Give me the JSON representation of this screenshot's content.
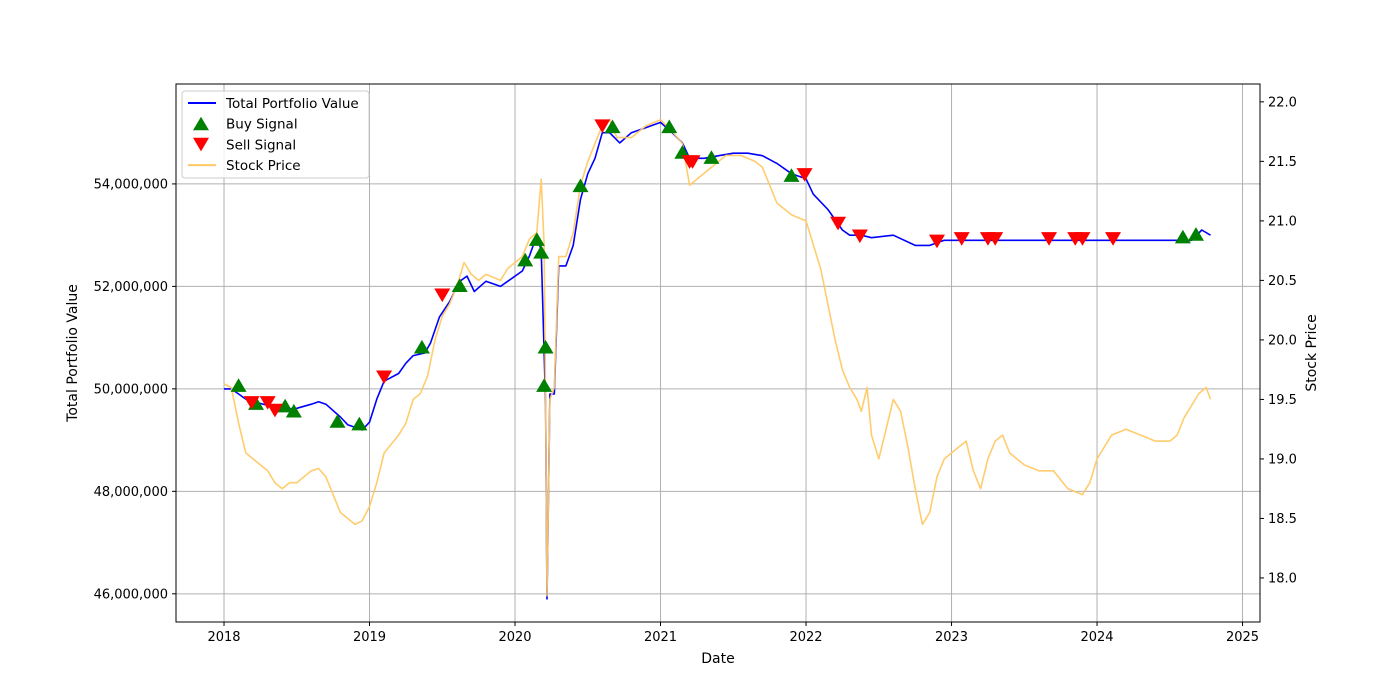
{
  "chart_data": {
    "type": "line",
    "title": "",
    "xlabel": "Date",
    "ylabel_left": "Total Portfolio Value",
    "ylabel_right": "Stock Price",
    "x_ticks": [
      "2018",
      "2019",
      "2020",
      "2021",
      "2022",
      "2023",
      "2024",
      "2025"
    ],
    "xlim": [
      2017.67,
      2025.12
    ],
    "y_left_ticks": [
      "46,000,000",
      "48,000,000",
      "50,000,000",
      "52,000,000",
      "54,000,000"
    ],
    "y_left_lim": [
      45450000,
      55950000
    ],
    "y_right_ticks": [
      "18.0",
      "18.5",
      "19.0",
      "19.5",
      "20.0",
      "20.5",
      "21.0",
      "21.5",
      "22.0"
    ],
    "y_right_lim": [
      17.63,
      22.15
    ],
    "grid": true,
    "legend_position": "top-left",
    "legend": [
      {
        "label": "Total Portfolio Value",
        "kind": "line",
        "color": "#0000ff"
      },
      {
        "label": "Buy Signal",
        "kind": "triangle-up",
        "color": "#008000"
      },
      {
        "label": "Sell Signal",
        "kind": "triangle-down",
        "color": "#ff0000"
      },
      {
        "label": "Stock Price",
        "kind": "line",
        "color": "#ffc966"
      }
    ],
    "series": [
      {
        "name": "Total Portfolio Value",
        "axis": "left",
        "color": "#0000ff",
        "points": [
          [
            2018.0,
            50000000
          ],
          [
            2018.05,
            50000000
          ],
          [
            2018.1,
            49900000
          ],
          [
            2018.15,
            49800000
          ],
          [
            2018.2,
            49750000
          ],
          [
            2018.3,
            49680000
          ],
          [
            2018.4,
            49600000
          ],
          [
            2018.5,
            49620000
          ],
          [
            2018.6,
            49700000
          ],
          [
            2018.65,
            49750000
          ],
          [
            2018.7,
            49700000
          ],
          [
            2018.8,
            49450000
          ],
          [
            2018.85,
            49300000
          ],
          [
            2018.95,
            49200000
          ],
          [
            2019.0,
            49350000
          ],
          [
            2019.05,
            49800000
          ],
          [
            2019.1,
            50150000
          ],
          [
            2019.2,
            50300000
          ],
          [
            2019.25,
            50500000
          ],
          [
            2019.3,
            50650000
          ],
          [
            2019.38,
            50700000
          ],
          [
            2019.42,
            50900000
          ],
          [
            2019.48,
            51400000
          ],
          [
            2019.55,
            51700000
          ],
          [
            2019.62,
            52100000
          ],
          [
            2019.67,
            52200000
          ],
          [
            2019.72,
            51900000
          ],
          [
            2019.8,
            52100000
          ],
          [
            2019.9,
            52000000
          ],
          [
            2019.95,
            52100000
          ],
          [
            2020.05,
            52300000
          ],
          [
            2020.1,
            52600000
          ],
          [
            2020.15,
            53000000
          ],
          [
            2020.18,
            52700000
          ],
          [
            2020.21,
            49700000
          ],
          [
            2020.22,
            45900000
          ],
          [
            2020.24,
            49900000
          ],
          [
            2020.27,
            49900000
          ],
          [
            2020.3,
            52400000
          ],
          [
            2020.35,
            52400000
          ],
          [
            2020.4,
            52800000
          ],
          [
            2020.45,
            53700000
          ],
          [
            2020.5,
            54200000
          ],
          [
            2020.55,
            54500000
          ],
          [
            2020.6,
            55000000
          ],
          [
            2020.65,
            55000000
          ],
          [
            2020.72,
            54800000
          ],
          [
            2020.8,
            55000000
          ],
          [
            2020.9,
            55100000
          ],
          [
            2021.0,
            55200000
          ],
          [
            2021.08,
            55000000
          ],
          [
            2021.15,
            54800000
          ],
          [
            2021.2,
            54500000
          ],
          [
            2021.3,
            54500000
          ],
          [
            2021.4,
            54550000
          ],
          [
            2021.5,
            54600000
          ],
          [
            2021.6,
            54600000
          ],
          [
            2021.7,
            54550000
          ],
          [
            2021.8,
            54400000
          ],
          [
            2021.9,
            54200000
          ],
          [
            2022.0,
            54100000
          ],
          [
            2022.05,
            53800000
          ],
          [
            2022.15,
            53500000
          ],
          [
            2022.25,
            53100000
          ],
          [
            2022.3,
            53000000
          ],
          [
            2022.38,
            53000000
          ],
          [
            2022.45,
            52950000
          ],
          [
            2022.6,
            53000000
          ],
          [
            2022.75,
            52800000
          ],
          [
            2022.85,
            52800000
          ],
          [
            2022.95,
            52900000
          ],
          [
            2023.1,
            52900000
          ],
          [
            2023.3,
            52900000
          ],
          [
            2023.6,
            52900000
          ],
          [
            2023.9,
            52900000
          ],
          [
            2024.2,
            52900000
          ],
          [
            2024.6,
            52900000
          ],
          [
            2024.65,
            52900000
          ],
          [
            2024.72,
            53100000
          ],
          [
            2024.78,
            53000000
          ]
        ]
      },
      {
        "name": "Stock Price",
        "axis": "right",
        "color": "#ffc966",
        "points": [
          [
            2018.0,
            19.63
          ],
          [
            2018.05,
            19.6
          ],
          [
            2018.1,
            19.3
          ],
          [
            2018.15,
            19.05
          ],
          [
            2018.2,
            19.0
          ],
          [
            2018.25,
            18.95
          ],
          [
            2018.3,
            18.9
          ],
          [
            2018.35,
            18.8
          ],
          [
            2018.4,
            18.75
          ],
          [
            2018.45,
            18.8
          ],
          [
            2018.5,
            18.8
          ],
          [
            2018.55,
            18.85
          ],
          [
            2018.6,
            18.9
          ],
          [
            2018.65,
            18.92
          ],
          [
            2018.7,
            18.85
          ],
          [
            2018.75,
            18.7
          ],
          [
            2018.8,
            18.55
          ],
          [
            2018.85,
            18.5
          ],
          [
            2018.9,
            18.45
          ],
          [
            2018.95,
            18.48
          ],
          [
            2019.0,
            18.6
          ],
          [
            2019.05,
            18.8
          ],
          [
            2019.1,
            19.05
          ],
          [
            2019.2,
            19.2
          ],
          [
            2019.25,
            19.3
          ],
          [
            2019.3,
            19.5
          ],
          [
            2019.35,
            19.55
          ],
          [
            2019.4,
            19.7
          ],
          [
            2019.45,
            20.0
          ],
          [
            2019.5,
            20.2
          ],
          [
            2019.55,
            20.3
          ],
          [
            2019.6,
            20.45
          ],
          [
            2019.65,
            20.65
          ],
          [
            2019.7,
            20.55
          ],
          [
            2019.75,
            20.5
          ],
          [
            2019.8,
            20.55
          ],
          [
            2019.9,
            20.5
          ],
          [
            2019.95,
            20.6
          ],
          [
            2020.05,
            20.7
          ],
          [
            2020.1,
            20.85
          ],
          [
            2020.15,
            20.9
          ],
          [
            2020.18,
            21.35
          ],
          [
            2020.2,
            20.8
          ],
          [
            2020.21,
            19.5
          ],
          [
            2020.22,
            17.85
          ],
          [
            2020.24,
            19.5
          ],
          [
            2020.27,
            19.6
          ],
          [
            2020.3,
            20.7
          ],
          [
            2020.35,
            20.7
          ],
          [
            2020.4,
            20.9
          ],
          [
            2020.45,
            21.3
          ],
          [
            2020.5,
            21.5
          ],
          [
            2020.55,
            21.65
          ],
          [
            2020.6,
            21.8
          ],
          [
            2020.65,
            21.85
          ],
          [
            2020.7,
            21.7
          ],
          [
            2020.8,
            21.7
          ],
          [
            2020.9,
            21.8
          ],
          [
            2021.0,
            21.85
          ],
          [
            2021.08,
            21.75
          ],
          [
            2021.15,
            21.65
          ],
          [
            2021.2,
            21.3
          ],
          [
            2021.25,
            21.35
          ],
          [
            2021.35,
            21.45
          ],
          [
            2021.45,
            21.55
          ],
          [
            2021.55,
            21.55
          ],
          [
            2021.65,
            21.5
          ],
          [
            2021.7,
            21.45
          ],
          [
            2021.75,
            21.3
          ],
          [
            2021.8,
            21.15
          ],
          [
            2021.85,
            21.1
          ],
          [
            2021.9,
            21.05
          ],
          [
            2022.0,
            21.0
          ],
          [
            2022.05,
            20.8
          ],
          [
            2022.1,
            20.6
          ],
          [
            2022.15,
            20.3
          ],
          [
            2022.2,
            20.0
          ],
          [
            2022.25,
            19.75
          ],
          [
            2022.3,
            19.6
          ],
          [
            2022.35,
            19.5
          ],
          [
            2022.38,
            19.4
          ],
          [
            2022.42,
            19.6
          ],
          [
            2022.45,
            19.2
          ],
          [
            2022.5,
            19.0
          ],
          [
            2022.55,
            19.25
          ],
          [
            2022.6,
            19.5
          ],
          [
            2022.65,
            19.4
          ],
          [
            2022.7,
            19.1
          ],
          [
            2022.75,
            18.75
          ],
          [
            2022.8,
            18.45
          ],
          [
            2022.85,
            18.55
          ],
          [
            2022.9,
            18.85
          ],
          [
            2022.95,
            19.0
          ],
          [
            2023.0,
            19.05
          ],
          [
            2023.05,
            19.1
          ],
          [
            2023.1,
            19.15
          ],
          [
            2023.15,
            18.9
          ],
          [
            2023.2,
            18.75
          ],
          [
            2023.25,
            19.0
          ],
          [
            2023.3,
            19.15
          ],
          [
            2023.35,
            19.2
          ],
          [
            2023.4,
            19.05
          ],
          [
            2023.5,
            18.95
          ],
          [
            2023.6,
            18.9
          ],
          [
            2023.7,
            18.9
          ],
          [
            2023.8,
            18.75
          ],
          [
            2023.9,
            18.7
          ],
          [
            2023.95,
            18.8
          ],
          [
            2024.0,
            19.0
          ],
          [
            2024.1,
            19.2
          ],
          [
            2024.2,
            19.25
          ],
          [
            2024.3,
            19.2
          ],
          [
            2024.4,
            19.15
          ],
          [
            2024.5,
            19.15
          ],
          [
            2024.55,
            19.2
          ],
          [
            2024.6,
            19.35
          ],
          [
            2024.65,
            19.45
          ],
          [
            2024.7,
            19.55
          ],
          [
            2024.75,
            19.6
          ],
          [
            2024.78,
            19.5
          ]
        ]
      }
    ],
    "buy_signals": [
      [
        2018.1,
        50050000
      ],
      [
        2018.22,
        49700000
      ],
      [
        2018.42,
        49650000
      ],
      [
        2018.48,
        49550000
      ],
      [
        2018.78,
        49350000
      ],
      [
        2018.93,
        49300000
      ],
      [
        2019.36,
        50800000
      ],
      [
        2019.62,
        52000000
      ],
      [
        2020.07,
        52500000
      ],
      [
        2020.15,
        52900000
      ],
      [
        2020.18,
        52650000
      ],
      [
        2020.2,
        50050000
      ],
      [
        2020.21,
        50800000
      ],
      [
        2020.45,
        53950000
      ],
      [
        2020.67,
        55100000
      ],
      [
        2021.06,
        55100000
      ],
      [
        2021.15,
        54600000
      ],
      [
        2021.35,
        54500000
      ],
      [
        2021.9,
        54150000
      ],
      [
        2024.59,
        52950000
      ],
      [
        2024.68,
        53000000
      ]
    ],
    "sell_signals": [
      [
        2018.19,
        49750000
      ],
      [
        2018.3,
        49750000
      ],
      [
        2018.35,
        49600000
      ],
      [
        2019.1,
        50250000
      ],
      [
        2019.5,
        51850000
      ],
      [
        2020.6,
        55150000
      ],
      [
        2021.2,
        54450000
      ],
      [
        2021.22,
        54450000
      ],
      [
        2021.99,
        54200000
      ],
      [
        2022.22,
        53250000
      ],
      [
        2022.37,
        53000000
      ],
      [
        2022.9,
        52900000
      ],
      [
        2023.07,
        52950000
      ],
      [
        2023.25,
        52950000
      ],
      [
        2023.3,
        52950000
      ],
      [
        2023.67,
        52950000
      ],
      [
        2023.85,
        52950000
      ],
      [
        2023.9,
        52950000
      ],
      [
        2024.11,
        52950000
      ]
    ]
  }
}
